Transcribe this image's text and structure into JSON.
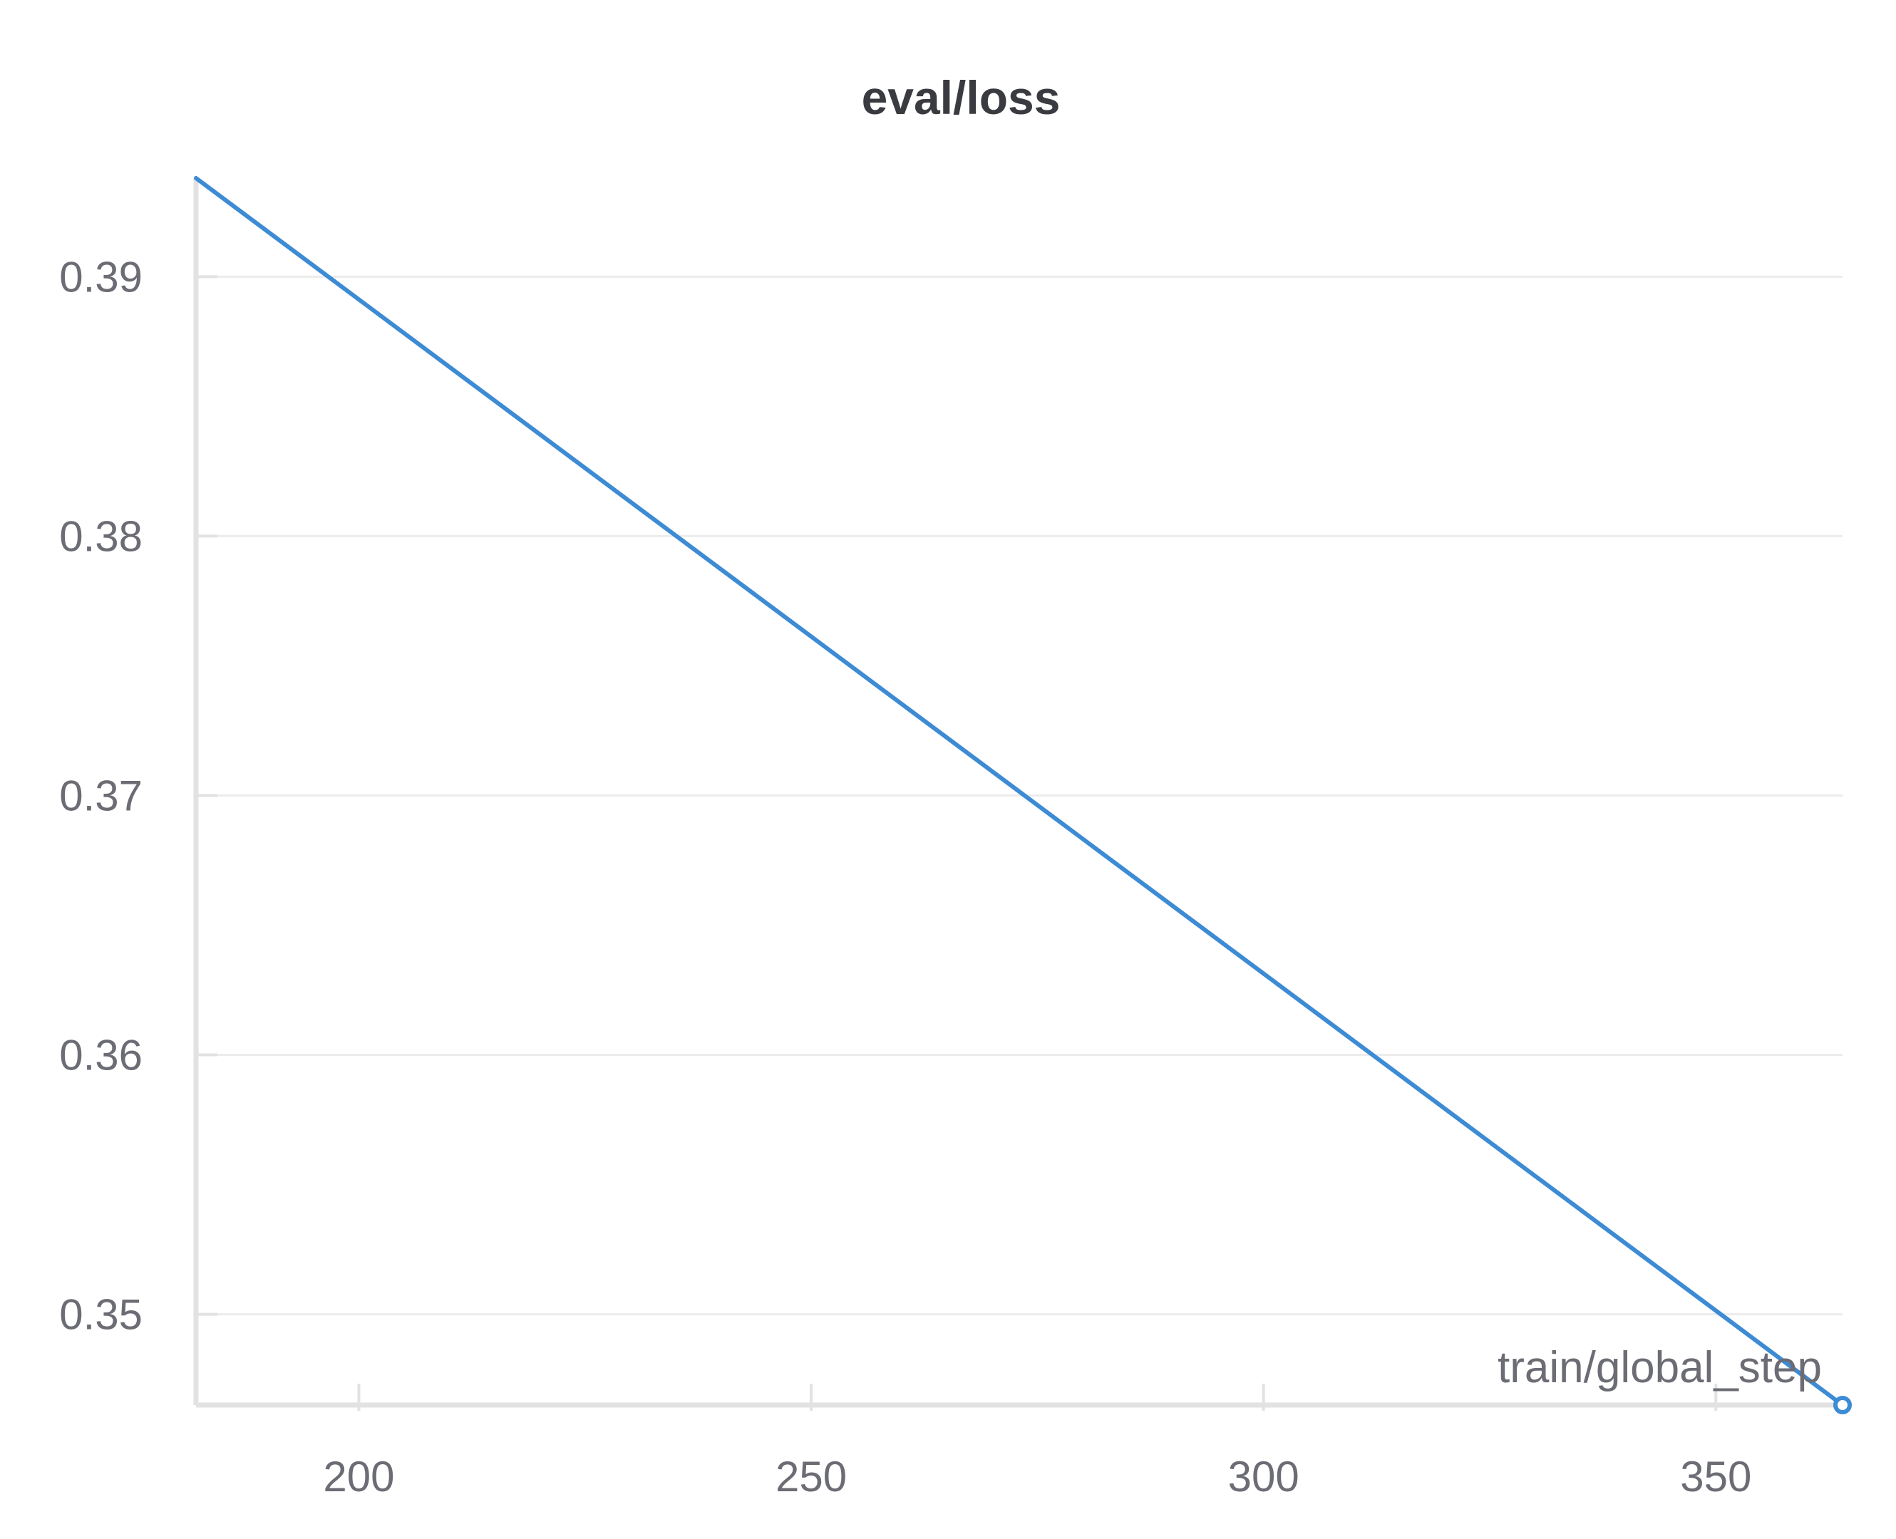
{
  "chart_data": {
    "type": "line",
    "title": "eval/loss",
    "xlabel": "train/global_step",
    "ylabel": "",
    "xlim": [
      182,
      364
    ],
    "ylim": [
      0.3465,
      0.3938
    ],
    "x_ticks": [
      200,
      250,
      300,
      350
    ],
    "y_ticks": [
      0.35,
      0.36,
      0.37,
      0.38,
      0.39
    ],
    "x_tick_labels": [
      "200",
      "250",
      "300",
      "350"
    ],
    "y_tick_labels": [
      "0.35",
      "0.36",
      "0.37",
      "0.38",
      "0.39"
    ],
    "grid": true,
    "series": [
      {
        "color": "#3d8bd4",
        "x": [
          182,
          364
        ],
        "y": [
          0.3938,
          0.3465
        ]
      }
    ],
    "colors": {
      "line": "#3d8bd4",
      "grid": "#ececec",
      "axis": "#e2e2e2"
    }
  }
}
